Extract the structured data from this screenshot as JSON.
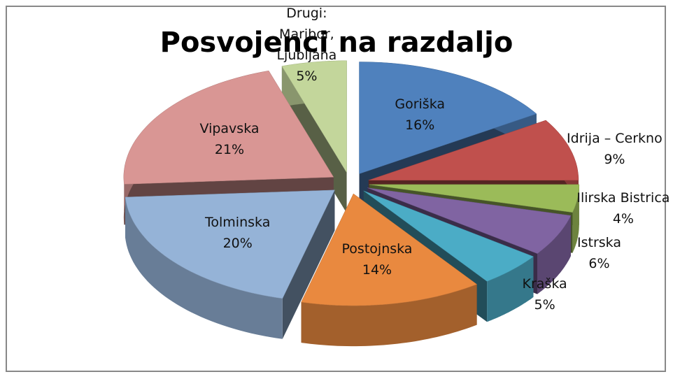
{
  "chart_data": {
    "type": "pie",
    "title": "Posvojenci na razdaljo",
    "categories": [
      "Goriška",
      "Idrija – Cerkno",
      "Ilirska Bistrica",
      "Istrska",
      "Kraška",
      "Postojnska",
      "Tolminska",
      "Vipavska",
      "Drugi: Maribor, Ljubljana"
    ],
    "values": [
      16,
      9,
      4,
      6,
      5,
      14,
      20,
      21,
      5
    ],
    "value_labels": [
      "16%",
      "9%",
      "4%",
      "6%",
      "5%",
      "14%",
      "20%",
      "21%",
      "5%"
    ],
    "colors": [
      "#4f81bd",
      "#c0504d",
      "#9bbb59",
      "#8064a2",
      "#4bacc6",
      "#e9893f",
      "#95b3d7",
      "#d99694",
      "#c3d69b"
    ]
  }
}
